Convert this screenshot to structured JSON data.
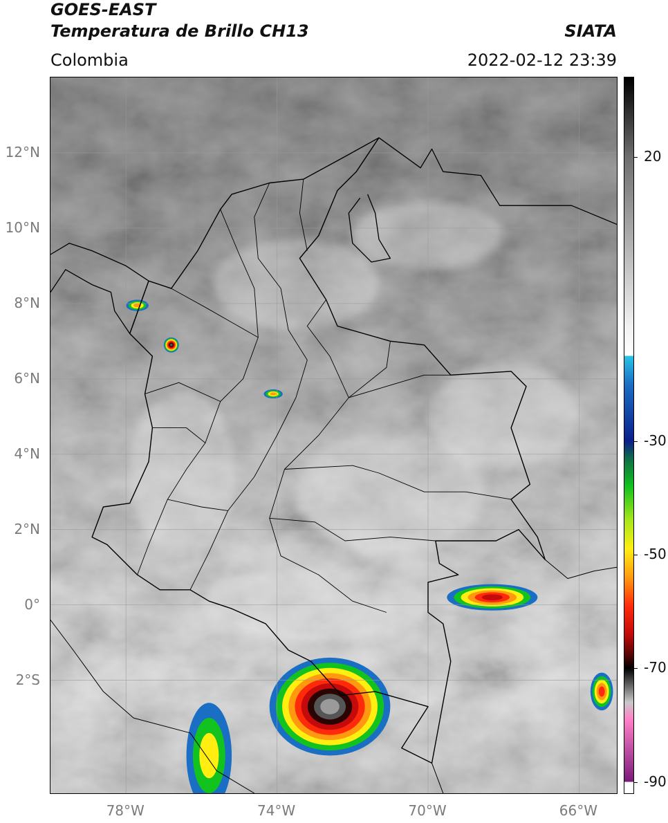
{
  "header": {
    "satellite": "GOES-EAST",
    "product": "Temperatura de Brillo CH13",
    "brand": "SIATA",
    "region": "Colombia",
    "datetime": "2022-02-12 23:39"
  },
  "map": {
    "projection": "PlateCarree",
    "lon_range": [
      -80,
      -65
    ],
    "lat_range": [
      -5,
      14
    ],
    "latitude_ticks": [
      {
        "value": 12,
        "label": "12°N"
      },
      {
        "value": 10,
        "label": "10°N"
      },
      {
        "value": 8,
        "label": "8°N"
      },
      {
        "value": 6,
        "label": "6°N"
      },
      {
        "value": 4,
        "label": "4°N"
      },
      {
        "value": 2,
        "label": "2°N"
      },
      {
        "value": 0,
        "label": "0°"
      },
      {
        "value": -2,
        "label": "2°S"
      }
    ],
    "longitude_ticks": [
      {
        "value": -78,
        "label": "78°W"
      },
      {
        "value": -74,
        "label": "74°W"
      },
      {
        "value": -70,
        "label": "70°W"
      },
      {
        "value": -66,
        "label": "66°W"
      }
    ],
    "gridlines": true,
    "grid_color": "#9a9a9a",
    "tick_label_color": "#7a7a7a",
    "storm_cells": [
      {
        "name": "amazon-mcs",
        "lon": -72.6,
        "lat": -2.7,
        "rx_deg": 1.6,
        "ry_deg": 1.3,
        "min_temp": -85
      },
      {
        "name": "uraba-cell",
        "lon": -76.8,
        "lat": 6.9,
        "rx_deg": 0.2,
        "ry_deg": 0.2,
        "min_temp": -75
      },
      {
        "name": "darien-cell",
        "lon": -77.7,
        "lat": 7.95,
        "rx_deg": 0.3,
        "ry_deg": 0.15,
        "min_temp": -45
      },
      {
        "name": "magdalena-cell",
        "lon": -74.1,
        "lat": 5.6,
        "rx_deg": 0.25,
        "ry_deg": 0.12,
        "min_temp": -50
      },
      {
        "name": "guaviare-line",
        "lon": -68.3,
        "lat": 0.2,
        "rx_deg": 1.2,
        "ry_deg": 0.35,
        "min_temp": -65
      },
      {
        "name": "napo-band",
        "lon": -75.8,
        "lat": -4.0,
        "rx_deg": 0.6,
        "ry_deg": 1.4,
        "min_temp": -40
      },
      {
        "name": "east-edge-cell",
        "lon": -65.4,
        "lat": -2.3,
        "rx_deg": 0.3,
        "ry_deg": 0.5,
        "min_temp": -55
      }
    ]
  },
  "colorbar": {
    "range": [
      -92,
      34
    ],
    "ticks": [
      {
        "value": 20,
        "label": "20"
      },
      {
        "value": -30,
        "label": "-30"
      },
      {
        "value": -50,
        "label": "-50"
      },
      {
        "value": -70,
        "label": "-70"
      },
      {
        "value": -90,
        "label": "-90"
      }
    ],
    "stops": [
      {
        "value": 34,
        "color": "#000000"
      },
      {
        "value": 20,
        "color": "#6e6e6e"
      },
      {
        "value": -10,
        "color": "#f2f2f2"
      },
      {
        "value": -15,
        "color": "#ffffff"
      },
      {
        "value": -15.01,
        "color": "#29c4e6"
      },
      {
        "value": -20,
        "color": "#1a6fc4"
      },
      {
        "value": -30,
        "color": "#0a1f8c"
      },
      {
        "value": -33,
        "color": "#0f6b4a"
      },
      {
        "value": -38,
        "color": "#12c21e"
      },
      {
        "value": -44,
        "color": "#a8e81a"
      },
      {
        "value": -49,
        "color": "#ffee10"
      },
      {
        "value": -54,
        "color": "#ff9a10"
      },
      {
        "value": -59,
        "color": "#ff2a0a"
      },
      {
        "value": -64,
        "color": "#c40a0a"
      },
      {
        "value": -68,
        "color": "#4a0505"
      },
      {
        "value": -70,
        "color": "#000000"
      },
      {
        "value": -76,
        "color": "#c8c8c8"
      },
      {
        "value": -79,
        "color": "#ff80c8"
      },
      {
        "value": -90,
        "color": "#7a1a7a"
      },
      {
        "value": -90.01,
        "color": "#ffffff"
      },
      {
        "value": -92,
        "color": "#ffffff"
      }
    ]
  },
  "boundaries": {
    "colombia": [
      [
        -77.9,
        7.2
      ],
      [
        -77.4,
        8.6
      ],
      [
        -76.8,
        8.4
      ],
      [
        -76.1,
        9.4
      ],
      [
        -75.5,
        10.5
      ],
      [
        -75.2,
        10.9
      ],
      [
        -74.2,
        11.2
      ],
      [
        -73.3,
        11.3
      ],
      [
        -72.2,
        11.9
      ],
      [
        -71.3,
        12.4
      ],
      [
        -71.9,
        11.5
      ],
      [
        -72.4,
        11.0
      ],
      [
        -72.9,
        9.8
      ],
      [
        -73.4,
        9.2
      ],
      [
        -72.7,
        8.1
      ],
      [
        -72.4,
        7.4
      ],
      [
        -71.0,
        7.0
      ],
      [
        -70.1,
        6.9
      ],
      [
        -69.4,
        6.1
      ],
      [
        -67.8,
        6.2
      ],
      [
        -67.4,
        5.8
      ],
      [
        -67.8,
        4.7
      ],
      [
        -67.3,
        3.2
      ],
      [
        -67.8,
        2.8
      ],
      [
        -67.1,
        1.8
      ],
      [
        -66.9,
        1.2
      ],
      [
        -67.6,
        2.0
      ],
      [
        -68.2,
        1.7
      ],
      [
        -69.8,
        1.7
      ],
      [
        -69.7,
        1.1
      ],
      [
        -69.2,
        0.8
      ],
      [
        -70.0,
        0.6
      ],
      [
        -70.0,
        -0.2
      ],
      [
        -69.6,
        -0.5
      ],
      [
        -69.4,
        -1.5
      ],
      [
        -69.9,
        -4.2
      ],
      [
        -70.7,
        -3.8
      ],
      [
        -70.0,
        -2.7
      ],
      [
        -71.4,
        -2.3
      ],
      [
        -72.3,
        -2.4
      ],
      [
        -73.1,
        -1.5
      ],
      [
        -73.7,
        -1.2
      ],
      [
        -74.3,
        -0.5
      ],
      [
        -75.2,
        -0.1
      ],
      [
        -75.8,
        0.1
      ],
      [
        -76.3,
        0.4
      ],
      [
        -77.1,
        0.4
      ],
      [
        -77.7,
        0.8
      ],
      [
        -78.5,
        1.6
      ],
      [
        -78.9,
        1.8
      ],
      [
        -78.6,
        2.6
      ],
      [
        -77.9,
        2.7
      ],
      [
        -77.4,
        3.8
      ],
      [
        -77.3,
        4.7
      ],
      [
        -77.5,
        5.6
      ],
      [
        -77.3,
        6.6
      ],
      [
        -77.9,
        7.2
      ]
    ],
    "panama": [
      [
        -80.0,
        9.3
      ],
      [
        -79.5,
        9.6
      ],
      [
        -78.9,
        9.4
      ],
      [
        -78.0,
        9.0
      ],
      [
        -77.4,
        8.6
      ],
      [
        -77.9,
        7.2
      ],
      [
        -78.3,
        7.8
      ],
      [
        -78.4,
        8.3
      ],
      [
        -78.9,
        8.5
      ],
      [
        -79.6,
        8.9
      ],
      [
        -80.0,
        8.3
      ]
    ],
    "maracaibo": [
      [
        -71.6,
        10.9
      ],
      [
        -71.4,
        10.4
      ],
      [
        -71.3,
        9.7
      ],
      [
        -71.0,
        9.2
      ],
      [
        -71.5,
        9.1
      ],
      [
        -72.0,
        9.6
      ],
      [
        -72.1,
        10.4
      ],
      [
        -71.8,
        10.8
      ]
    ],
    "venezuela_coast": [
      [
        -71.3,
        12.4
      ],
      [
        -70.2,
        11.6
      ],
      [
        -69.9,
        12.1
      ],
      [
        -69.6,
        11.5
      ],
      [
        -68.6,
        11.4
      ],
      [
        -68.1,
        10.6
      ],
      [
        -67.0,
        10.6
      ],
      [
        -66.2,
        10.6
      ],
      [
        -65.0,
        10.1
      ]
    ],
    "ecuador_peru": [
      [
        -80.0,
        -0.4
      ],
      [
        -79.4,
        -1.2
      ],
      [
        -78.6,
        -2.3
      ],
      [
        -77.8,
        -3.0
      ],
      [
        -76.3,
        -3.4
      ],
      [
        -75.6,
        -4.4
      ],
      [
        -74.6,
        -5.0
      ]
    ],
    "brazil_peru": [
      [
        -69.9,
        -4.2
      ],
      [
        -69.6,
        -5.0
      ]
    ],
    "venezuela_brazil": [
      [
        -66.9,
        1.2
      ],
      [
        -66.3,
        0.7
      ],
      [
        -65.6,
        0.9
      ],
      [
        -65.0,
        1.0
      ]
    ],
    "departments": [
      [
        [
          -75.5,
          10.5
        ],
        [
          -75.0,
          9.3
        ],
        [
          -74.6,
          8.4
        ],
        [
          -74.5,
          7.1
        ],
        [
          -74.9,
          6.0
        ],
        [
          -75.5,
          5.4
        ],
        [
          -75.9,
          4.3
        ],
        [
          -76.4,
          3.6
        ],
        [
          -76.9,
          2.8
        ],
        [
          -77.4,
          1.6
        ],
        [
          -77.7,
          0.8
        ]
      ],
      [
        [
          -74.2,
          11.2
        ],
        [
          -74.6,
          10.3
        ],
        [
          -74.5,
          9.2
        ],
        [
          -73.9,
          8.4
        ],
        [
          -73.7,
          7.3
        ],
        [
          -73.2,
          6.5
        ],
        [
          -73.5,
          5.5
        ],
        [
          -74.0,
          4.5
        ],
        [
          -74.6,
          3.4
        ],
        [
          -75.3,
          2.5
        ],
        [
          -75.8,
          1.4
        ],
        [
          -76.3,
          0.4
        ]
      ],
      [
        [
          -73.3,
          11.3
        ],
        [
          -73.4,
          10.4
        ],
        [
          -73.2,
          9.4
        ]
      ],
      [
        [
          -72.7,
          8.1
        ],
        [
          -73.2,
          7.4
        ],
        [
          -72.6,
          6.6
        ],
        [
          -72.1,
          5.5
        ],
        [
          -72.9,
          4.5
        ],
        [
          -73.8,
          3.6
        ],
        [
          -74.2,
          2.3
        ],
        [
          -73.9,
          1.3
        ],
        [
          -72.9,
          0.8
        ],
        [
          -72.0,
          0.1
        ],
        [
          -71.1,
          -0.2
        ]
      ],
      [
        [
          -72.1,
          5.5
        ],
        [
          -70.1,
          6.1
        ],
        [
          -69.4,
          6.1
        ]
      ],
      [
        [
          -73.8,
          3.6
        ],
        [
          -72.0,
          3.7
        ],
        [
          -71.3,
          3.5
        ],
        [
          -70.1,
          3.0
        ],
        [
          -69.0,
          3.0
        ],
        [
          -67.8,
          2.8
        ]
      ],
      [
        [
          -74.2,
          2.3
        ],
        [
          -73.0,
          2.2
        ],
        [
          -72.2,
          1.7
        ],
        [
          -71.0,
          1.8
        ],
        [
          -69.8,
          1.7
        ]
      ],
      [
        [
          -76.9,
          2.8
        ],
        [
          -76.0,
          2.6
        ],
        [
          -75.3,
          2.5
        ]
      ],
      [
        [
          -77.3,
          4.7
        ],
        [
          -76.4,
          4.7
        ],
        [
          -75.9,
          4.3
        ]
      ],
      [
        [
          -77.5,
          5.6
        ],
        [
          -76.6,
          5.9
        ],
        [
          -75.5,
          5.4
        ]
      ],
      [
        [
          -76.8,
          8.4
        ],
        [
          -75.9,
          7.9
        ],
        [
          -75.2,
          7.5
        ],
        [
          -74.5,
          7.1
        ]
      ],
      [
        [
          -71.0,
          7.0
        ],
        [
          -71.1,
          6.3
        ],
        [
          -72.1,
          5.5
        ]
      ]
    ]
  }
}
